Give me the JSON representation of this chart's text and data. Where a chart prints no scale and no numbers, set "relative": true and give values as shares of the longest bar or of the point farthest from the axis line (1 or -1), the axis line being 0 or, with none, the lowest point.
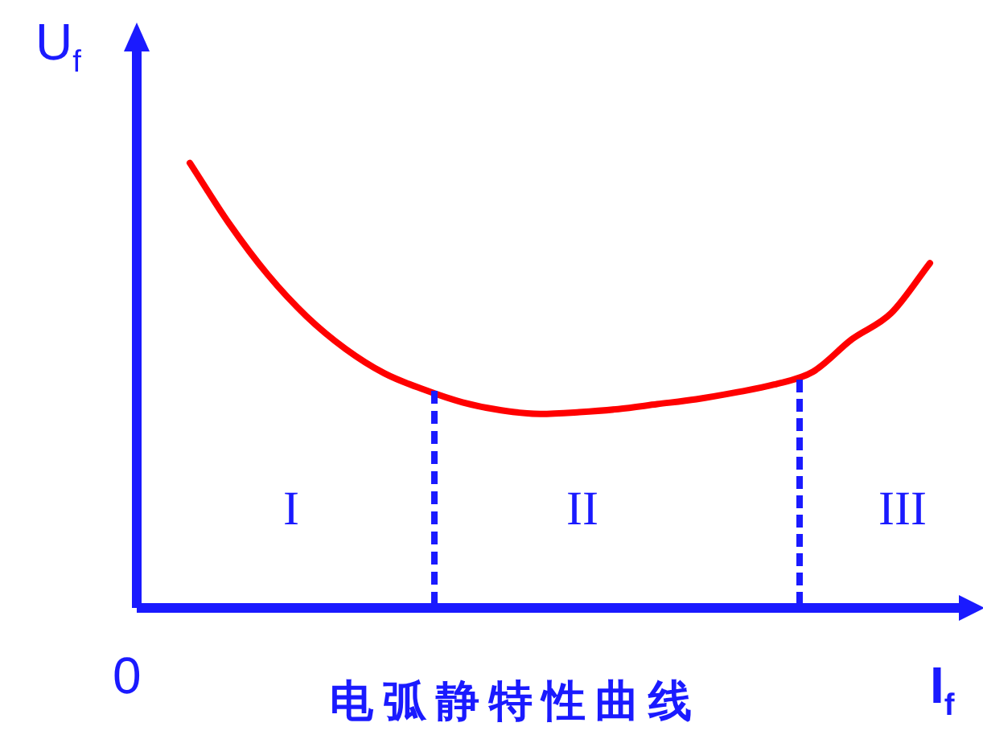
{
  "chart_data": {
    "type": "line",
    "title": "电弧静特性曲线",
    "xlabel": "I$_{f}$",
    "ylabel": "U$_{f}$",
    "relative": true,
    "legend": false,
    "marker": "none",
    "line_style": "solid",
    "annotations": [
      "0",
      "I",
      "II",
      "III"
    ],
    "categories": [
      null,
      null,
      null,
      null,
      null,
      null,
      null,
      null,
      null,
      null,
      null,
      null,
      null,
      null,
      null,
      null,
      null,
      null,
      null,
      null
    ],
    "series": [
      {
        "color": "#ff0000",
        "values": [
          1.0,
          0.865,
          0.749,
          0.655,
          0.582,
          0.527,
          0.491,
          0.462,
          0.444,
          0.436,
          0.44,
          0.447,
          0.458,
          0.469,
          0.484,
          0.502,
          0.531,
          0.604,
          0.662,
          0.775
        ]
      }
    ]
  }
}
